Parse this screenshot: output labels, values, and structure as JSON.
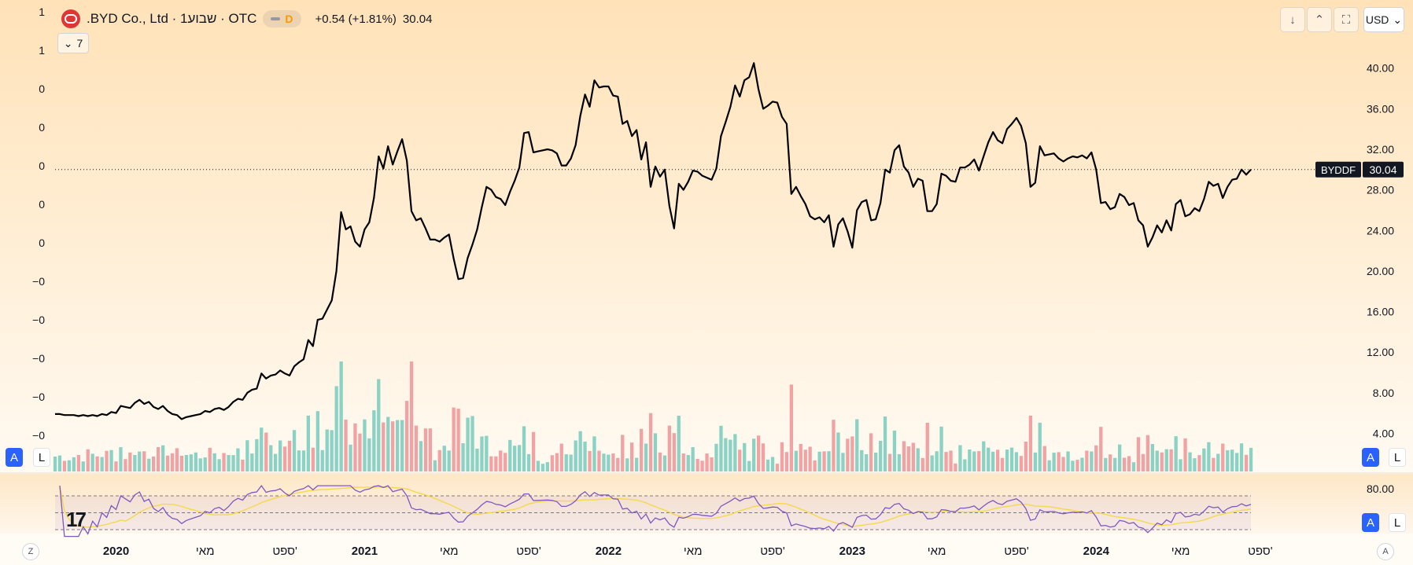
{
  "header": {
    "title": ".BYD Co., Ltd · 1שבוע · OTC",
    "mode_badge": "D",
    "change": "+0.54 (+1.81%)",
    "last_price": "30.04",
    "indicator_count": "7"
  },
  "toolbar": {
    "currency": "USD",
    "down_icon": "arrow-down-icon",
    "collapse_icon": "collapse-icon",
    "fullscreen_icon": "fullscreen-icon"
  },
  "colors": {
    "up_volume": "#89d2c4",
    "down_volume": "#f3a2a3",
    "price_line": "#000000",
    "rsi_line": "#7e57c2",
    "rsi_ma": "#f5d94a",
    "accent": "#2962ff",
    "bg_top": "#ffe2b8",
    "bg_bottom": "#fffaf2"
  },
  "buttons": {
    "auto": "A",
    "log": "L",
    "zoom": "Z",
    "tz": "A"
  },
  "chart_data": {
    "type": "line",
    "symbol": "BYDDF",
    "interval": "1W",
    "x_range": [
      "2019-10",
      "2024-06"
    ],
    "series": [
      {
        "values": [
          5.9,
          5.9,
          5.8,
          5.8,
          5.8,
          5.7,
          5.8,
          5.7,
          5.8,
          5.7,
          5.9,
          5.8,
          6.1,
          6.0,
          6.7,
          6.6,
          6.5,
          7.0,
          7.3,
          6.9,
          7.1,
          6.6,
          6.4,
          6.7,
          6.2,
          5.9,
          5.8,
          5.4,
          5.6,
          5.7,
          5.8,
          5.9,
          6.2,
          6.1,
          6.4,
          6.5,
          6.3,
          6.6,
          7.1,
          7.4,
          7.3,
          8.0,
          8.3,
          8.4,
          9.9,
          9.4,
          9.7,
          9.8,
          10.2,
          9.9,
          9.7,
          10.6,
          11.0,
          11.3,
          13.2,
          12.6,
          15.2,
          15.3,
          16.2,
          17.1,
          20.0,
          25.8,
          24.1,
          24.4,
          22.9,
          22.4,
          24.1,
          24.8,
          27.2,
          31.3,
          30.1,
          32.3,
          30.5,
          31.8,
          33.0,
          30.9,
          25.9,
          25.0,
          25.2,
          24.2,
          23.1,
          23.1,
          22.9,
          23.3,
          23.6,
          21.2,
          19.2,
          19.3,
          21.3,
          22.6,
          24.1,
          26.3,
          28.3,
          28.0,
          27.3,
          27.1,
          26.5,
          27.8,
          28.9,
          30.2,
          33.6,
          33.7,
          31.7,
          31.8,
          31.9,
          32.0,
          31.9,
          31.6,
          30.4,
          30.4,
          31.1,
          32.4,
          35.3,
          37.4,
          36.2,
          38.8,
          38.1,
          38.2,
          38.2,
          37.3,
          37.2,
          34.5,
          34.8,
          33.3,
          33.9,
          31.0,
          32.7,
          28.3,
          30.3,
          29.3,
          30.0,
          26.4,
          24.2,
          28.6,
          28.0,
          28.8,
          29.9,
          29.8,
          29.4,
          29.2,
          29.0,
          30.1,
          33.3,
          34.7,
          36.2,
          38.3,
          37.2,
          38.8,
          39.1,
          40.5,
          37.9,
          36.0,
          36.3,
          36.7,
          36.6,
          35.2,
          34.5,
          27.6,
          28.3,
          27.4,
          26.6,
          25.4,
          25.1,
          25.3,
          24.8,
          25.5,
          22.4,
          24.6,
          25.2,
          23.9,
          22.3,
          26.0,
          26.8,
          27.0,
          25.0,
          25.1,
          26.7,
          30.0,
          29.7,
          31.9,
          32.4,
          30.3,
          29.7,
          28.3,
          29.1,
          28.9,
          25.9,
          25.9,
          26.6,
          29.6,
          29.4,
          28.9,
          28.8,
          30.2,
          30.2,
          30.5,
          31.0,
          29.9,
          31.3,
          32.7,
          33.7,
          32.9,
          32.6,
          34.0,
          34.5,
          35.1,
          34.3,
          32.6,
          28.3,
          28.7,
          32.3,
          31.4,
          31.5,
          31.6,
          31.1,
          30.8,
          31.1,
          31.3,
          31.2,
          31.4,
          31.1,
          31.7,
          30.0,
          26.7,
          26.8,
          26.1,
          26.3,
          27.6,
          27.3,
          26.5,
          26.7,
          25.0,
          24.5,
          22.4,
          23.3,
          24.5,
          23.8,
          25.0,
          24.0,
          26.6,
          27.0,
          25.4,
          25.6,
          26.2,
          25.9,
          27.1,
          28.8,
          28.4,
          28.6,
          27.2,
          28.3,
          29.0,
          29.1,
          30.0,
          29.5,
          30.0
        ]
      }
    ],
    "volume": {
      "up_color": "#89d2c4",
      "down_color": "#f3a2a3"
    },
    "rsi": {
      "levels": [
        70,
        50,
        30
      ],
      "ylabel_top": "80.00"
    },
    "x_ticks": [
      {
        "label": "2020",
        "bold": true,
        "idx": 13
      },
      {
        "label": "מאי",
        "bold": false,
        "idx": 32
      },
      {
        "label": "ספט'",
        "bold": false,
        "idx": 49
      },
      {
        "label": "2021",
        "bold": true,
        "idx": 66
      },
      {
        "label": "מאי",
        "bold": false,
        "idx": 84
      },
      {
        "label": "ספט'",
        "bold": false,
        "idx": 101
      },
      {
        "label": "2022",
        "bold": true,
        "idx": 118
      },
      {
        "label": "מאי",
        "bold": false,
        "idx": 136
      },
      {
        "label": "ספט'",
        "bold": false,
        "idx": 153
      },
      {
        "label": "2023",
        "bold": true,
        "idx": 170
      },
      {
        "label": "מאי",
        "bold": false,
        "idx": 188
      },
      {
        "label": "ספט'",
        "bold": false,
        "idx": 205
      },
      {
        "label": "2024",
        "bold": true,
        "idx": 222
      },
      {
        "label": "מאי",
        "bold": false,
        "idx": 240
      },
      {
        "label": "ספט'",
        "bold": false,
        "idx": 257
      }
    ],
    "y_ticks": [
      "40.00",
      "36.00",
      "32.00",
      "28.00",
      "24.00",
      "20.00",
      "16.00",
      "12.00",
      "8.00",
      "4.00"
    ],
    "y_range": [
      1.4,
      43.0
    ],
    "left_scale": [
      "1",
      "1",
      "0",
      "0",
      "0",
      "0",
      "0",
      "−0",
      "−0",
      "−0",
      "−0",
      "−0"
    ],
    "last_label": {
      "symbol": "BYDDF",
      "value": "30.04"
    },
    "grid": false
  }
}
